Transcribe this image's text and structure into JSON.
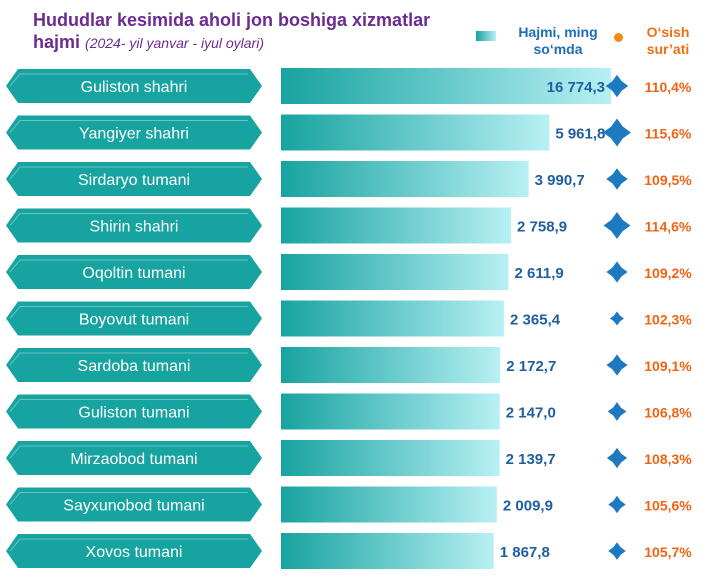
{
  "header": {
    "title": "Hududlar kesimida aholi jon boshiga xizmatlar hajmi",
    "subtitle": "(2024- yil yanvar - iyul oylari)"
  },
  "legend": {
    "volume_label": "Hajmi, ming so‘mda",
    "growth_label": "O‘sish sur’ati"
  },
  "colors": {
    "banner": "#17a3a0",
    "bar_start": "#17a3a0",
    "bar_end": "#b8f0f4",
    "value_text": "#1f5f9f",
    "growth_text": "#f06414",
    "marker": "#1d7ac0",
    "title": "#6b2c91"
  },
  "chart_data": {
    "type": "bar",
    "orientation": "horizontal",
    "categories": [
      "Guliston shahri",
      "Yangiyer shahri",
      "Sirdaryo tumani",
      "Shirin shahri",
      "Oqoltin tumani",
      "Boyovut tumani",
      "Sardoba tumani",
      "Guliston tumani",
      "Mirzaobod tumani",
      "Sayxunobod tumani",
      "Xovos tumani"
    ],
    "series": [
      {
        "name": "Hajmi, ming so‘mda",
        "values": [
          16774.3,
          5961.8,
          3990.7,
          2758.9,
          2611.9,
          2365.4,
          2172.7,
          2147.0,
          2139.7,
          2009.9,
          1867.8
        ],
        "labels": [
          "16 774,3",
          "5 961,8",
          "3 990,7",
          "2 758,9",
          "2 611,9",
          "2 365,4",
          "2 172,7",
          "2 147,0",
          "2 139,7",
          "2 009,9",
          "1 867,8"
        ]
      },
      {
        "name": "O‘sish sur’ati",
        "values": [
          110.4,
          115.6,
          109.5,
          114.6,
          109.2,
          102.3,
          109.1,
          106.8,
          108.3,
          105.6,
          105.7
        ],
        "labels": [
          "110,4%",
          "115,6%",
          "109,5%",
          "114,6%",
          "109,2%",
          "102,3%",
          "109,1%",
          "106,8%",
          "108,3%",
          "105,6%",
          "105,7%"
        ]
      }
    ]
  }
}
